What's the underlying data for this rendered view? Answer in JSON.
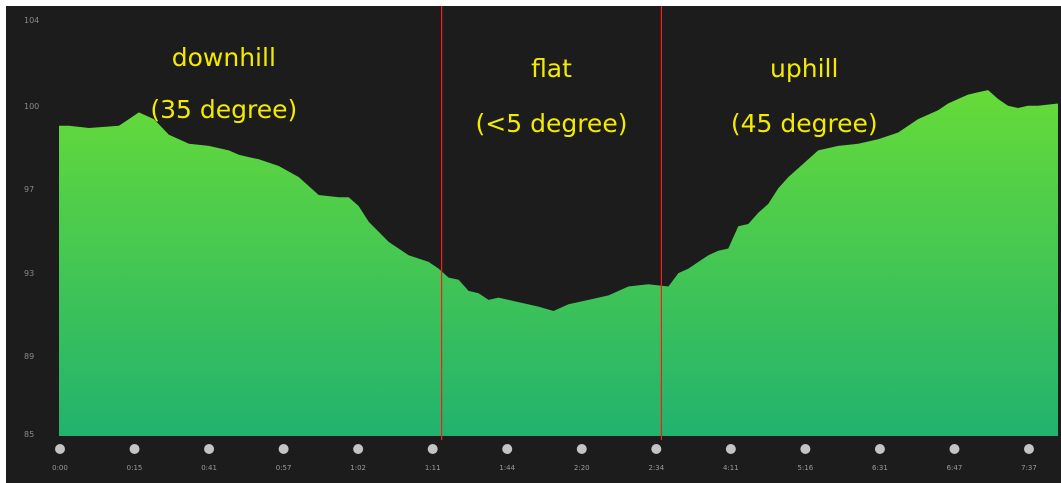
{
  "chart_data": {
    "type": "area",
    "title": "",
    "xlabel": "",
    "ylabel": "",
    "y_ticks": [
      "104",
      "100",
      "97",
      "93",
      "89",
      "85"
    ],
    "ylim": [
      85,
      104
    ],
    "x_ticks": [
      "0:00",
      "0:15",
      "0:41",
      "0:57",
      "1:02",
      "1:11",
      "1:44",
      "2:20",
      "2:34",
      "4:11",
      "5:16",
      "6:31",
      "6:47",
      "7:37"
    ],
    "x_range": [
      0,
      100
    ],
    "series": [
      {
        "x": [
          0,
          1,
          3,
          6,
          7,
          8,
          9.5,
          11,
          13,
          15,
          17,
          18,
          19,
          20,
          22,
          24,
          26,
          28,
          29,
          30,
          31,
          33,
          35,
          37,
          38,
          39,
          40,
          41,
          42,
          43,
          44,
          46,
          48,
          49.5,
          51,
          53,
          55,
          57,
          59,
          61,
          62,
          63,
          64,
          65,
          66,
          67,
          68,
          69,
          70,
          71,
          72,
          73,
          75,
          76,
          78,
          80,
          82,
          84,
          86,
          88,
          89,
          90,
          91,
          92,
          93,
          94,
          95,
          96,
          97,
          98,
          100
        ],
        "values": [
          98.9,
          98.9,
          98.8,
          98.9,
          99.2,
          99.5,
          99.2,
          98.5,
          98.1,
          98.0,
          97.8,
          97.6,
          97.5,
          97.4,
          97.1,
          96.6,
          95.8,
          95.7,
          95.7,
          95.3,
          94.6,
          93.7,
          93.1,
          92.8,
          92.5,
          92.1,
          92.0,
          91.5,
          91.4,
          91.1,
          91.2,
          91.0,
          90.8,
          90.6,
          90.9,
          91.1,
          91.3,
          91.7,
          91.8,
          91.7,
          92.3,
          92.5,
          92.8,
          93.1,
          93.3,
          93.4,
          94.4,
          94.5,
          95.0,
          95.4,
          96.1,
          96.6,
          97.4,
          97.8,
          98.0,
          98.1,
          98.3,
          98.6,
          99.2,
          99.6,
          99.9,
          100.1,
          100.3,
          100.4,
          100.5,
          100.1,
          99.8,
          99.7,
          99.8,
          99.8,
          99.9
        ]
      }
    ],
    "dividers_x": [
      38.3,
      60.3
    ],
    "annotations": [
      {
        "lines": [
          "downhill",
          "(35 degree)"
        ],
        "x": 16.5
      },
      {
        "lines": [
          "flat",
          "(<5 degree)"
        ],
        "x": 49.3
      },
      {
        "lines": [
          "uphill",
          "(45 degree)"
        ],
        "x": 74.6
      }
    ],
    "colors": {
      "background": "#1c1c1c",
      "fill_top": "#66db38",
      "fill_bottom": "#22b26e",
      "divider": "#ff1a1a",
      "annotation": "#f2ea00",
      "tick_text": "#8a8a8a",
      "marker": "#c4c4c4"
    },
    "grid": false,
    "legend": "none"
  }
}
